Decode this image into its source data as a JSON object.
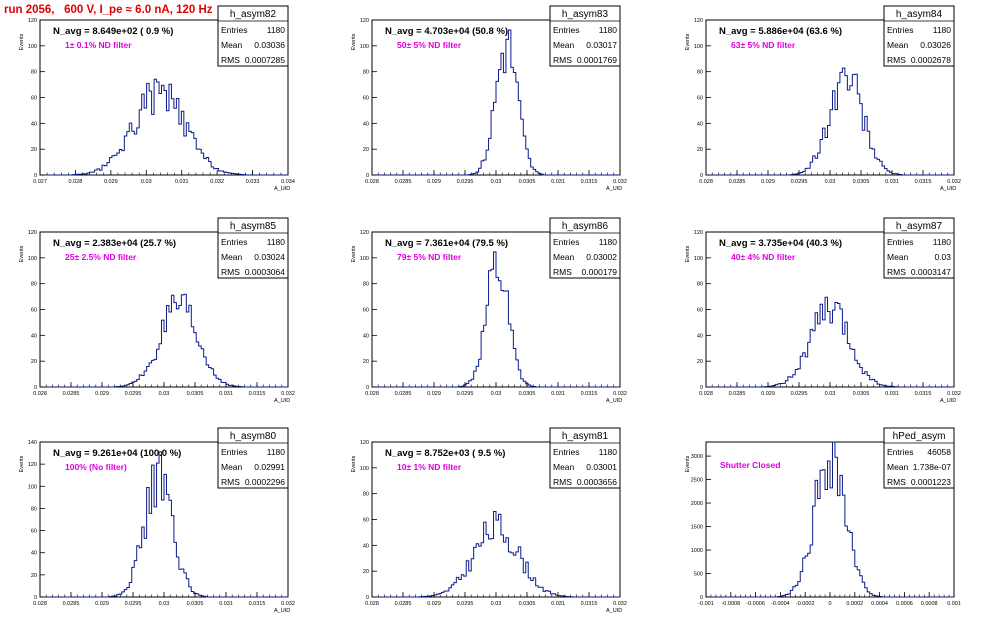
{
  "run_title": "run 2056,   600 V, I_pe ≈ 6.0 nA, 120 Hz",
  "stats_labels": {
    "entries": "Entries",
    "mean": "Mean",
    "rms": "RMS"
  },
  "chart_data": [
    {
      "type": "bar",
      "name": "h_asym82",
      "navg": "N_avg = 8.649e+02 ( 0.9 %)",
      "filter": "1± 0.1% ND filter",
      "entries": "1180",
      "mean": "0.03036",
      "rms": "0.0007285",
      "xlabel": "A_UID",
      "ylabel": "Events",
      "xlim": [
        0.027,
        0.034
      ],
      "ylim": [
        0,
        120
      ],
      "xticks": [
        "0.027",
        "0.028",
        "0.029",
        "0.03",
        "0.031",
        "0.032",
        "0.033",
        "0.034"
      ],
      "yticks": [
        "0",
        "20",
        "40",
        "60",
        "80",
        "100",
        "120"
      ],
      "center": 0.03036,
      "sigma": 0.00073,
      "peak": 65,
      "bins": 100,
      "seed": 82
    },
    {
      "type": "bar",
      "name": "h_asym83",
      "navg": "N_avg = 4.703e+04 (50.8 %)",
      "filter": "50± 5% ND filter",
      "entries": "1180",
      "mean": "0.03017",
      "rms": "0.0001769",
      "xlabel": "A_UID",
      "ylabel": "Events",
      "xlim": [
        0.028,
        0.032
      ],
      "ylim": [
        0,
        120
      ],
      "xticks": [
        "0.028",
        "0.0285",
        "0.029",
        "0.0295",
        "0.03",
        "0.0305",
        "0.031",
        "0.0315",
        "0.032"
      ],
      "yticks": [
        "0",
        "20",
        "40",
        "60",
        "80",
        "100",
        "120"
      ],
      "center": 0.03017,
      "sigma": 0.000177,
      "peak": 105,
      "bins": 100,
      "seed": 83
    },
    {
      "type": "bar",
      "name": "h_asym84",
      "navg": "N_avg = 5.886e+04 (63.6 %)",
      "filter": "63± 5% ND filter",
      "entries": "1180",
      "mean": "0.03026",
      "rms": "0.0002678",
      "xlabel": "A_UID",
      "ylabel": "Events",
      "xlim": [
        0.028,
        0.032
      ],
      "ylim": [
        0,
        120
      ],
      "xticks": [
        "0.028",
        "0.0285",
        "0.029",
        "0.0295",
        "0.03",
        "0.0305",
        "0.031",
        "0.0315",
        "0.032"
      ],
      "yticks": [
        "0",
        "20",
        "40",
        "60",
        "80",
        "100",
        "120"
      ],
      "center": 0.03026,
      "sigma": 0.000268,
      "peak": 80,
      "bins": 100,
      "seed": 84
    },
    {
      "type": "bar",
      "name": "h_asym85",
      "navg": "N_avg = 2.383e+04 (25.7 %)",
      "filter": "25± 2.5% ND filter",
      "entries": "1180",
      "mean": "0.03024",
      "rms": "0.0003064",
      "xlabel": "A_UID",
      "ylabel": "Events",
      "xlim": [
        0.028,
        0.032
      ],
      "ylim": [
        0,
        120
      ],
      "xticks": [
        "0.028",
        "0.0285",
        "0.029",
        "0.0295",
        "0.03",
        "0.0305",
        "0.031",
        "0.0315",
        "0.032"
      ],
      "yticks": [
        "0",
        "20",
        "40",
        "60",
        "80",
        "100",
        "120"
      ],
      "center": 0.03024,
      "sigma": 0.000306,
      "peak": 62,
      "bins": 100,
      "seed": 85
    },
    {
      "type": "bar",
      "name": "h_asym86",
      "navg": "N_avg = 7.361e+04 (79.5 %)",
      "filter": "79± 5% ND filter",
      "entries": "1180",
      "mean": "0.03002",
      "rms": "0.000179",
      "xlabel": "A_UID",
      "ylabel": "Events",
      "xlim": [
        0.028,
        0.032
      ],
      "ylim": [
        0,
        120
      ],
      "xticks": [
        "0.028",
        "0.0285",
        "0.029",
        "0.0295",
        "0.03",
        "0.0305",
        "0.031",
        "0.0315",
        "0.032"
      ],
      "yticks": [
        "0",
        "20",
        "40",
        "60",
        "80",
        "100",
        "120"
      ],
      "center": 0.03002,
      "sigma": 0.000179,
      "peak": 100,
      "bins": 100,
      "seed": 86
    },
    {
      "type": "bar",
      "name": "h_asym87",
      "navg": "N_avg = 3.735e+04 (40.3 %)",
      "filter": "40± 4% ND filter",
      "entries": "1180",
      "mean": "0.03",
      "rms": "0.0003147",
      "xlabel": "A_UID",
      "ylabel": "Events",
      "xlim": [
        0.028,
        0.032
      ],
      "ylim": [
        0,
        120
      ],
      "xticks": [
        "0.028",
        "0.0285",
        "0.029",
        "0.0295",
        "0.03",
        "0.0305",
        "0.031",
        "0.0315",
        "0.032"
      ],
      "yticks": [
        "0",
        "20",
        "40",
        "60",
        "80",
        "100",
        "120"
      ],
      "center": 0.03,
      "sigma": 0.000315,
      "peak": 62,
      "bins": 100,
      "seed": 87
    },
    {
      "type": "bar",
      "name": "h_asym80",
      "navg": "N_avg = 9.261e+04 (100.0 %)",
      "filter": "100% (No filter)",
      "entries": "1180",
      "mean": "0.02991",
      "rms": "0.0002296",
      "xlabel": "A_UID",
      "ylabel": "Events",
      "xlim": [
        0.028,
        0.032
      ],
      "ylim": [
        0,
        140
      ],
      "xticks": [
        "0.028",
        "0.0285",
        "0.029",
        "0.0295",
        "0.03",
        "0.0305",
        "0.031",
        "0.0315",
        "0.032"
      ],
      "yticks": [
        "0",
        "20",
        "40",
        "60",
        "80",
        "100",
        "120",
        "140"
      ],
      "center": 0.02991,
      "sigma": 0.00023,
      "peak": 110,
      "bins": 100,
      "seed": 80
    },
    {
      "type": "bar",
      "name": "h_asym81",
      "navg": "N_avg = 8.752e+03 ( 9.5 %)",
      "filter": "10± 1% ND filter",
      "entries": "1180",
      "mean": "0.03001",
      "rms": "0.0003656",
      "xlabel": "A_UID",
      "ylabel": "Events",
      "xlim": [
        0.028,
        0.032
      ],
      "ylim": [
        0,
        120
      ],
      "xticks": [
        "0.028",
        "0.0285",
        "0.029",
        "0.0295",
        "0.03",
        "0.0305",
        "0.031",
        "0.0315",
        "0.032"
      ],
      "yticks": [
        "0",
        "20",
        "40",
        "60",
        "80",
        "100",
        "120"
      ],
      "center": 0.03001,
      "sigma": 0.000366,
      "peak": 55,
      "bins": 100,
      "seed": 81
    },
    {
      "type": "bar",
      "name": "hPed_asym",
      "navg": "",
      "filter": "Shutter Closed",
      "entries": "46058",
      "mean": "1.738e-07",
      "rms": "0.0001223",
      "xlabel": "",
      "ylabel": "Events",
      "xlim": [
        -0.001,
        0.001
      ],
      "ylim": [
        0,
        3300
      ],
      "xticks": [
        "-0.001",
        "-0.0008",
        "-0.0006",
        "-0.0004",
        "-0.0002",
        "0",
        "0.0002",
        "0.0004",
        "0.0006",
        "0.0008",
        "0.001"
      ],
      "yticks": [
        "0",
        "500",
        "1000",
        "1500",
        "2000",
        "2500",
        "3000"
      ],
      "center": 2e-07,
      "sigma": 0.000122,
      "peak": 3150,
      "bins": 100,
      "seed": 99
    }
  ]
}
